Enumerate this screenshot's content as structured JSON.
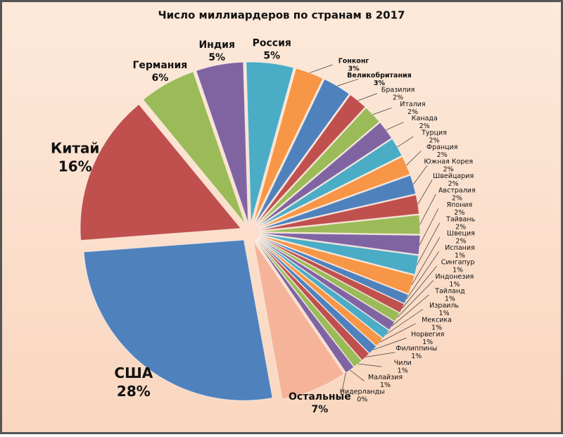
{
  "chart_data": {
    "type": "pie",
    "title": "Число миллиардеров по странам в 2017",
    "categories": [
      "Россия",
      "Гонконг",
      "Великобритания",
      "Бразилия",
      "Италия",
      "Канада",
      "Турция",
      "Франция",
      "Южная Корея",
      "Швейцария",
      "Австралия",
      "Япония",
      "Тайвань",
      "Швеция",
      "Испания",
      "Сингапур",
      "Индонезия",
      "Тайланд",
      "Израиль",
      "Мексика",
      "Норвегия",
      "Филиппины",
      "Чили",
      "Малайзия",
      "Нидерланды",
      "Остальные",
      "США",
      "Китай",
      "Германия",
      "Индия"
    ],
    "values": [
      5,
      3,
      3,
      2,
      2,
      2,
      2,
      2,
      2,
      2,
      2,
      2,
      2,
      2,
      1,
      1,
      1,
      1,
      1,
      1,
      1,
      1,
      1,
      1,
      0,
      7,
      28,
      16,
      6,
      5
    ],
    "value_labels": [
      "5%",
      "3%",
      "3%",
      "2%",
      "2%",
      "2%",
      "2%",
      "2%",
      "2%",
      "2%",
      "2%",
      "2%",
      "2%",
      "2%",
      "1%",
      "1%",
      "1%",
      "1%",
      "1%",
      "1%",
      "1%",
      "1%",
      "1%",
      "1%",
      "0%",
      "7%",
      "28%",
      "16%",
      "6%",
      "5%"
    ],
    "colors": [
      "#4bacc6",
      "#f79646",
      "#4f81bd",
      "#c0504d",
      "#9bbb59",
      "#8064a2",
      "#4bacc6",
      "#f79646",
      "#4f81bd",
      "#c0504d",
      "#9bbb59",
      "#8064a2",
      "#4bacc6",
      "#f79646",
      "#4f81bd",
      "#c0504d",
      "#9bbb59",
      "#8064a2",
      "#4bacc6",
      "#f79646",
      "#4f81bd",
      "#c0504d",
      "#9bbb59",
      "#8064a2",
      "#4bacc6",
      "#f5b49a",
      "#4f81bd",
      "#c0504d",
      "#9bbb59",
      "#8064a2"
    ]
  }
}
